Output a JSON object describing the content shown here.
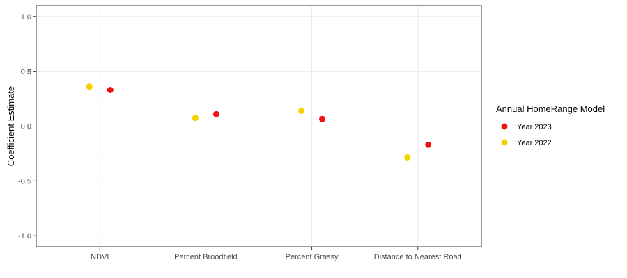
{
  "chart_data": {
    "type": "scatter",
    "title": "",
    "xlabel": "",
    "ylabel": "Coefficient Estimate",
    "categories": [
      "NDVI",
      "Percent Broodfield",
      "Percent Grassy",
      "Distance to Nearest Road"
    ],
    "ylim": [
      -1.1,
      1.1
    ],
    "yticks": [
      -1.0,
      -0.5,
      0.0,
      0.5,
      1.0
    ],
    "ytick_labels": [
      "-1.0",
      "-0.5",
      "0.0",
      "0.5",
      "1.0"
    ],
    "reference_line": {
      "y": 0,
      "style": "dashed"
    },
    "grid": true,
    "legend": {
      "title": "Annual HomeRange Model",
      "placement": "right"
    },
    "series": [
      {
        "name": "Year 2023",
        "color": "#ee1111",
        "values": [
          0.33,
          0.11,
          0.065,
          -0.17
        ]
      },
      {
        "name": "Year 2022",
        "color": "#f5d000",
        "values": [
          0.36,
          0.075,
          0.14,
          -0.285
        ]
      }
    ]
  }
}
